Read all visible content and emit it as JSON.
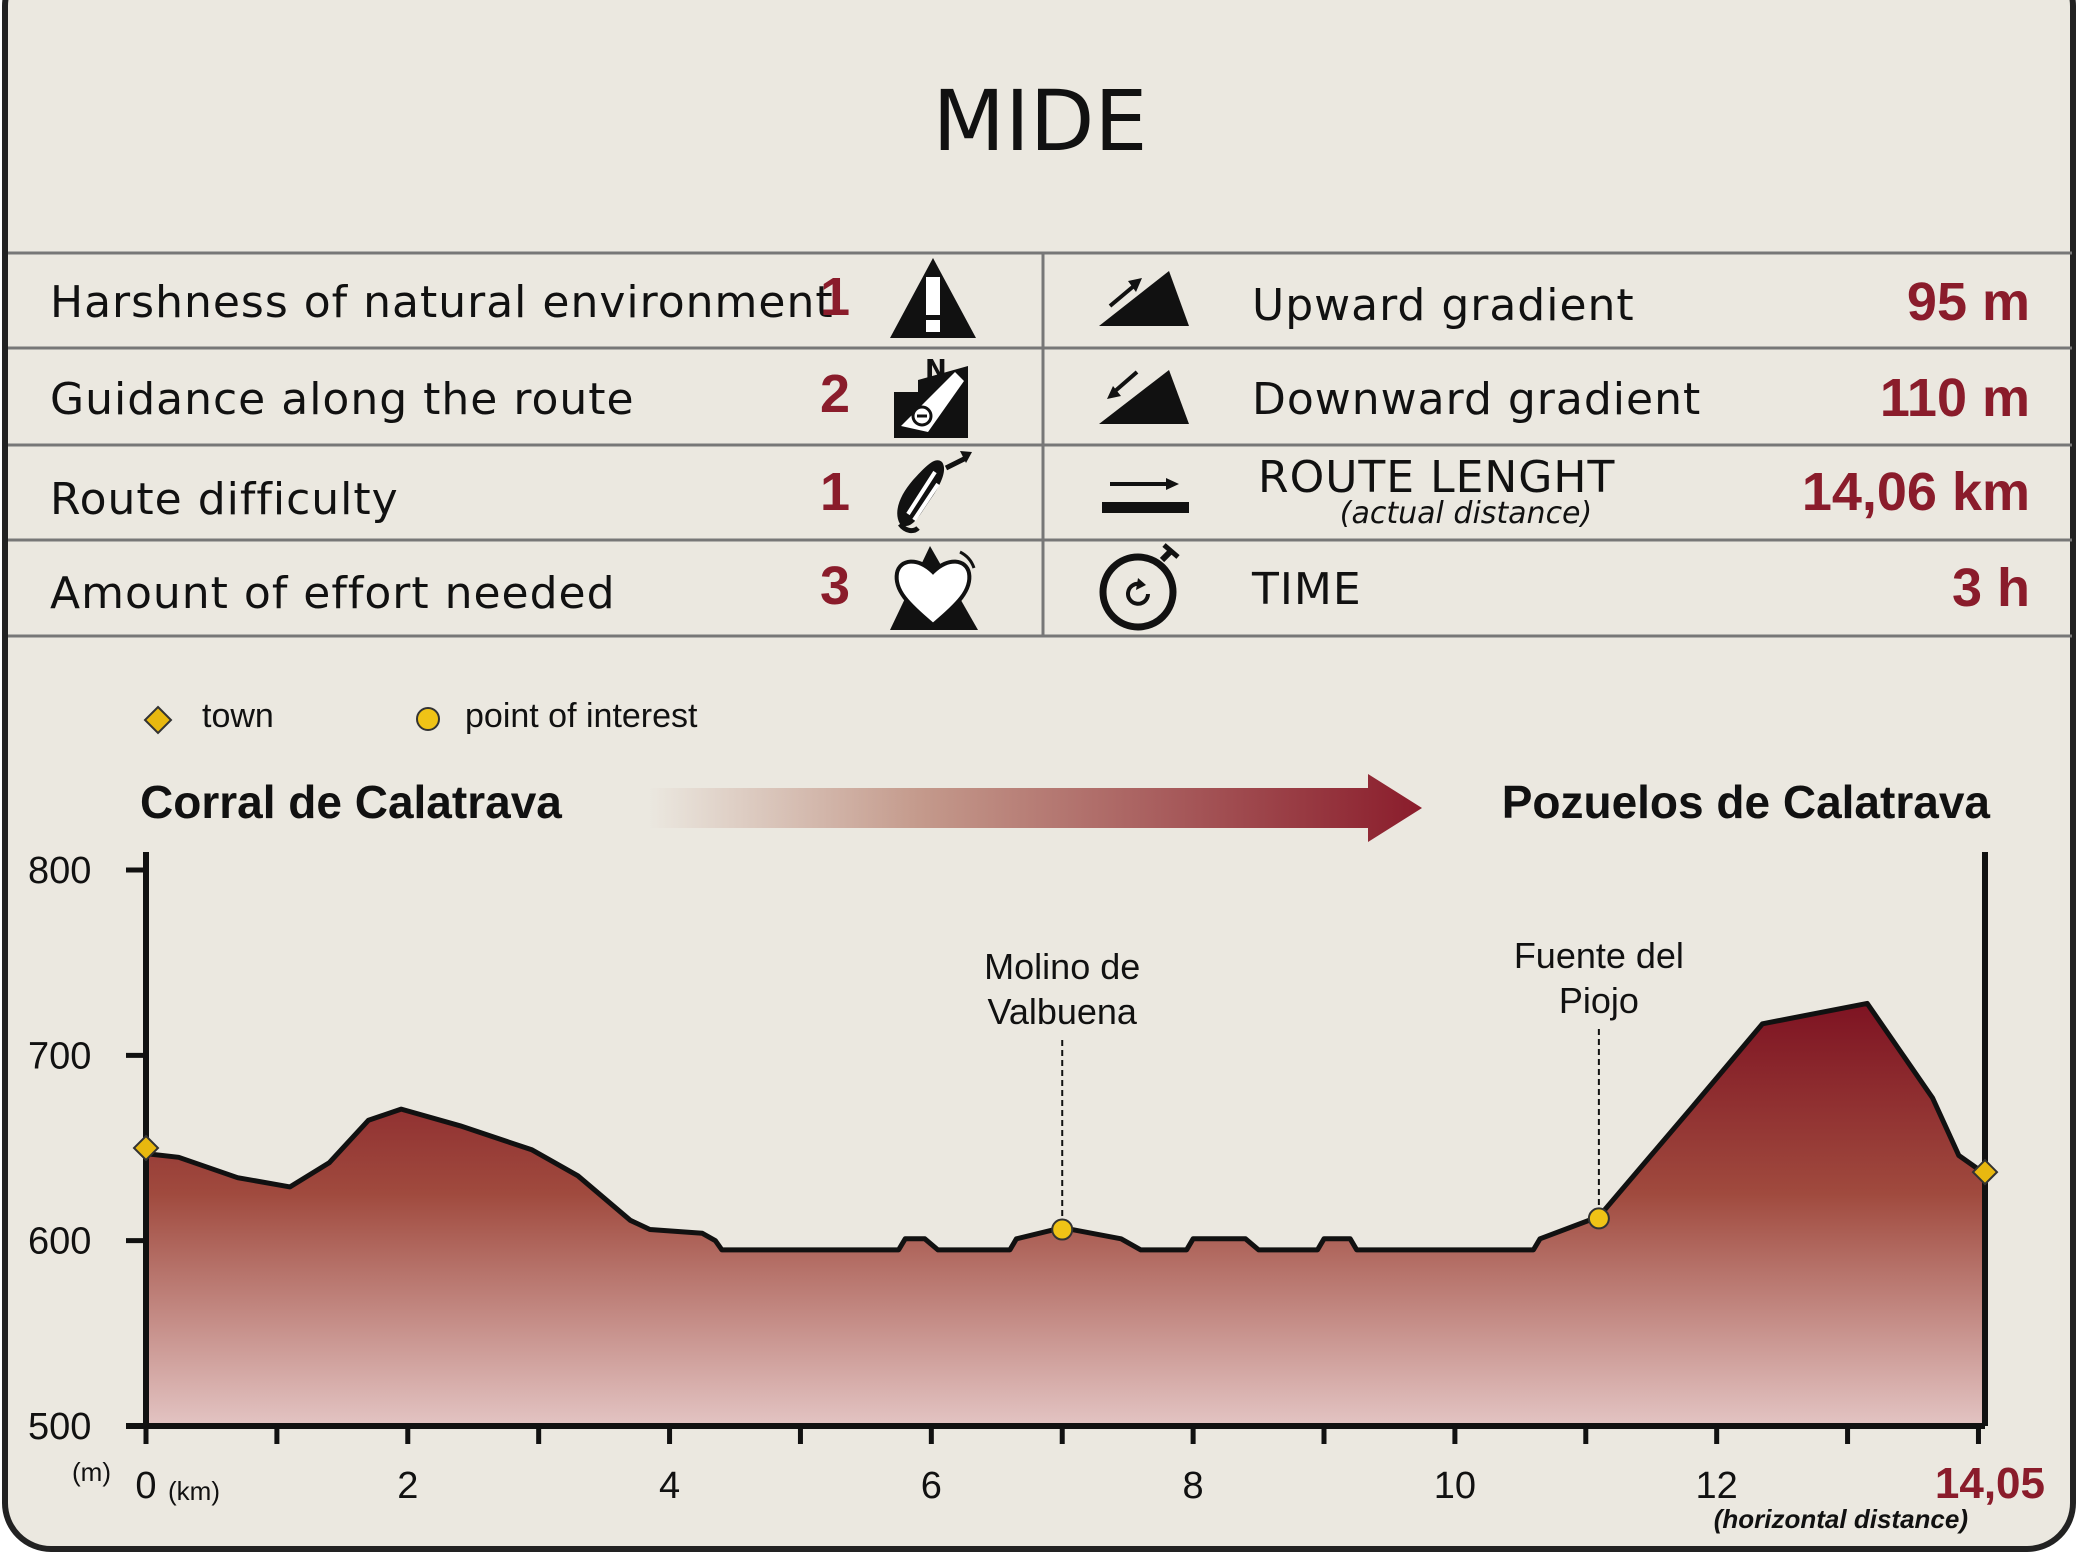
{
  "title": "MIDE",
  "colors": {
    "panel": "#ebe8e0",
    "accent": "#8a1c2b",
    "diamond": "#e8b80f",
    "circle": "#f0c316"
  },
  "mide_left": [
    {
      "label": "Harshness of natural environment",
      "value": "1",
      "icon": "warning-triangle-icon"
    },
    {
      "label": "Guidance along the route",
      "value": "2",
      "icon": "compass-map-icon"
    },
    {
      "label": "Route difficulty",
      "value": "1",
      "icon": "footprint-icon"
    },
    {
      "label": "Amount of effort needed",
      "value": "3",
      "icon": "heart-mountain-icon"
    }
  ],
  "mide_right": [
    {
      "label": "Upward gradient",
      "value": "95 m",
      "icon": "upward-slope-icon"
    },
    {
      "label": "Downward gradient",
      "value": "110 m",
      "icon": "downward-slope-icon"
    },
    {
      "label": "ROUTE LENGHT",
      "sublabel": "(actual distance)",
      "value": "14,06 km",
      "icon": "distance-arrow-icon"
    },
    {
      "label": "TIME",
      "value": "3 h",
      "icon": "stopwatch-icon"
    }
  ],
  "legend": {
    "town": "town",
    "poi": "point of interest"
  },
  "route": {
    "start": "Corral de Calatrava",
    "end": "Pozuelos de Calatrava"
  },
  "chart_data": {
    "type": "area",
    "x_unit": "(km)",
    "y_unit": "(m)",
    "x_label": "(horizontal distance)",
    "xlim": [
      0,
      14.05
    ],
    "ylim": [
      500,
      800
    ],
    "x_ticks": [
      "0",
      "2",
      "4",
      "6",
      "8",
      "10",
      "12"
    ],
    "x_end_label": "14,05",
    "y_ticks": [
      "800",
      "700",
      "600",
      "500"
    ],
    "profile": [
      [
        0,
        647
      ],
      [
        0.25,
        645
      ],
      [
        0.7,
        634
      ],
      [
        1.1,
        629
      ],
      [
        1.4,
        642
      ],
      [
        1.7,
        665
      ],
      [
        1.95,
        671
      ],
      [
        2.4,
        662
      ],
      [
        2.95,
        649
      ],
      [
        3.3,
        635
      ],
      [
        3.7,
        611
      ],
      [
        3.85,
        606
      ],
      [
        4.25,
        604
      ],
      [
        4.35,
        600
      ],
      [
        4.4,
        595
      ],
      [
        5.75,
        595
      ],
      [
        5.8,
        601
      ],
      [
        5.95,
        601
      ],
      [
        6.05,
        595
      ],
      [
        6.6,
        595
      ],
      [
        6.65,
        601
      ],
      [
        7.0,
        607
      ],
      [
        7.45,
        601
      ],
      [
        7.6,
        595
      ],
      [
        7.95,
        595
      ],
      [
        8.0,
        601
      ],
      [
        8.4,
        601
      ],
      [
        8.5,
        595
      ],
      [
        8.95,
        595
      ],
      [
        9.0,
        601
      ],
      [
        9.2,
        601
      ],
      [
        9.25,
        595
      ],
      [
        10.6,
        595
      ],
      [
        10.65,
        601
      ],
      [
        11.1,
        613
      ],
      [
        11.8,
        671
      ],
      [
        12.35,
        717
      ],
      [
        13.15,
        728
      ],
      [
        13.65,
        677
      ],
      [
        13.85,
        646
      ],
      [
        14.05,
        636
      ]
    ],
    "points": [
      {
        "type": "town",
        "name": "Corral de Calatrava",
        "x": 0,
        "y": 650
      },
      {
        "type": "poi",
        "name": "Molino de Valbuena",
        "x": 7.0,
        "y": 606
      },
      {
        "type": "poi",
        "name": "Fuente del Piojo",
        "x": 11.1,
        "y": 612
      },
      {
        "type": "town",
        "name": "Pozuelos de Calatrava",
        "x": 14.05,
        "y": 637
      }
    ],
    "poi_labels": [
      {
        "lines": [
          "Molino de",
          "Valbuena"
        ],
        "x": 7.0
      },
      {
        "lines": [
          "Fuente del",
          "Piojo"
        ],
        "x": 11.1
      }
    ]
  }
}
